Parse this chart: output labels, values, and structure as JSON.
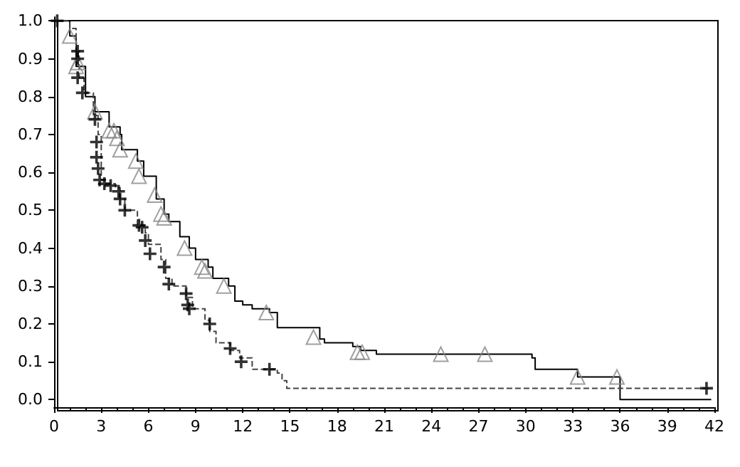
{
  "chart_data": {
    "type": "step",
    "xlim": [
      0,
      42
    ],
    "xticks": [
      0,
      3,
      6,
      9,
      12,
      15,
      18,
      21,
      24,
      27,
      30,
      33,
      36,
      39,
      42
    ],
    "ylim": [
      -0.02,
      1.01
    ],
    "grid": false,
    "yticks": [
      {
        "value": 0,
        "label": "0.0"
      },
      {
        "value": 0.1,
        "label": "0.1"
      },
      {
        "value": 0.2,
        "label": "0.2"
      },
      {
        "value": 0.3,
        "label": "0.3"
      },
      {
        "value": 0.4,
        "label": "0.4"
      },
      {
        "value": 0.5,
        "label": "0.5"
      },
      {
        "value": 0.6,
        "label": "0.6"
      },
      {
        "value": 0.7,
        "label": "0.7"
      },
      {
        "value": 0.8,
        "label": "0.8"
      },
      {
        "value": 0.9,
        "label": "0.9"
      },
      {
        "value": 1,
        "label": "1.0"
      }
    ],
    "series": [
      {
        "type": "step",
        "color": "#000000",
        "line_style": "solid",
        "marker": "none",
        "x": [
          0,
          1.0,
          1.4,
          2.0,
          2.6,
          3.5,
          4.2,
          4.3,
          5.3,
          5.7,
          6.5,
          7.0,
          7.3,
          8.0,
          8.6,
          9.0,
          9.8,
          10.1,
          11.1,
          11.5,
          12.0,
          12.6,
          13.7,
          14.2,
          16.9,
          17.2,
          19.0,
          19.5,
          20.5,
          30.4,
          30.6,
          33.3,
          36.0,
          41.8
        ],
        "values": [
          1.0,
          0.96,
          0.88,
          0.8,
          0.76,
          0.72,
          0.7,
          0.66,
          0.63,
          0.59,
          0.53,
          0.49,
          0.47,
          0.43,
          0.4,
          0.37,
          0.35,
          0.32,
          0.3,
          0.26,
          0.25,
          0.24,
          0.23,
          0.19,
          0.16,
          0.15,
          0.14,
          0.13,
          0.12,
          0.11,
          0.08,
          0.06,
          0.0,
          0.0
        ]
      },
      {
        "type": "step",
        "color": "#444444",
        "line_style": "dashed",
        "marker": "none",
        "x": [
          0,
          1.0,
          1.4,
          1.6,
          1.9,
          2.5,
          2.8,
          3.0,
          3.3,
          3.9,
          4.2,
          4.5,
          5.3,
          5.8,
          6.0,
          6.8,
          7.1,
          7.5,
          8.4,
          8.8,
          9.6,
          9.9,
          10.3,
          11.2,
          11.8,
          12.6,
          14.2,
          14.5,
          14.8,
          41.8
        ],
        "values": [
          1.0,
          0.98,
          0.92,
          0.85,
          0.81,
          0.75,
          0.7,
          0.58,
          0.57,
          0.56,
          0.53,
          0.5,
          0.46,
          0.44,
          0.41,
          0.37,
          0.32,
          0.3,
          0.27,
          0.24,
          0.21,
          0.18,
          0.15,
          0.13,
          0.11,
          0.08,
          0.07,
          0.05,
          0.03,
          0.03
        ]
      },
      {
        "type": "scatter",
        "color": "#888888",
        "marker": "triangle",
        "x": [
          1.0,
          1.4,
          1.5,
          2.6,
          3.5,
          3.8,
          4.0,
          4.2,
          5.2,
          5.4,
          6.4,
          6.8,
          7.0,
          8.3,
          9.4,
          9.6,
          10.8,
          13.5,
          16.5,
          19.3,
          19.6,
          24.6,
          27.4,
          33.3,
          35.8
        ],
        "values": [
          0.96,
          0.88,
          0.89,
          0.76,
          0.71,
          0.71,
          0.69,
          0.66,
          0.63,
          0.59,
          0.54,
          0.49,
          0.48,
          0.4,
          0.35,
          0.34,
          0.3,
          0.23,
          0.165,
          0.125,
          0.125,
          0.12,
          0.12,
          0.06,
          0.06
        ]
      },
      {
        "type": "scatter",
        "color": "#000000",
        "marker": "cross",
        "x": [
          0.2,
          1.5,
          1.5,
          1.5,
          1.8,
          2.6,
          2.7,
          2.7,
          2.8,
          2.9,
          3.2,
          3.6,
          4.1,
          4.2,
          4.5,
          5.4,
          5.6,
          5.8,
          6.1,
          7.0,
          7.3,
          8.4,
          8.5,
          8.6,
          9.9,
          11.2,
          11.9,
          13.7,
          41.5
        ],
        "values": [
          1.0,
          0.92,
          0.9,
          0.85,
          0.81,
          0.74,
          0.68,
          0.64,
          0.61,
          0.58,
          0.57,
          0.565,
          0.55,
          0.53,
          0.5,
          0.46,
          0.455,
          0.42,
          0.385,
          0.35,
          0.305,
          0.28,
          0.25,
          0.24,
          0.2,
          0.135,
          0.1,
          0.08,
          0.03
        ]
      }
    ]
  }
}
